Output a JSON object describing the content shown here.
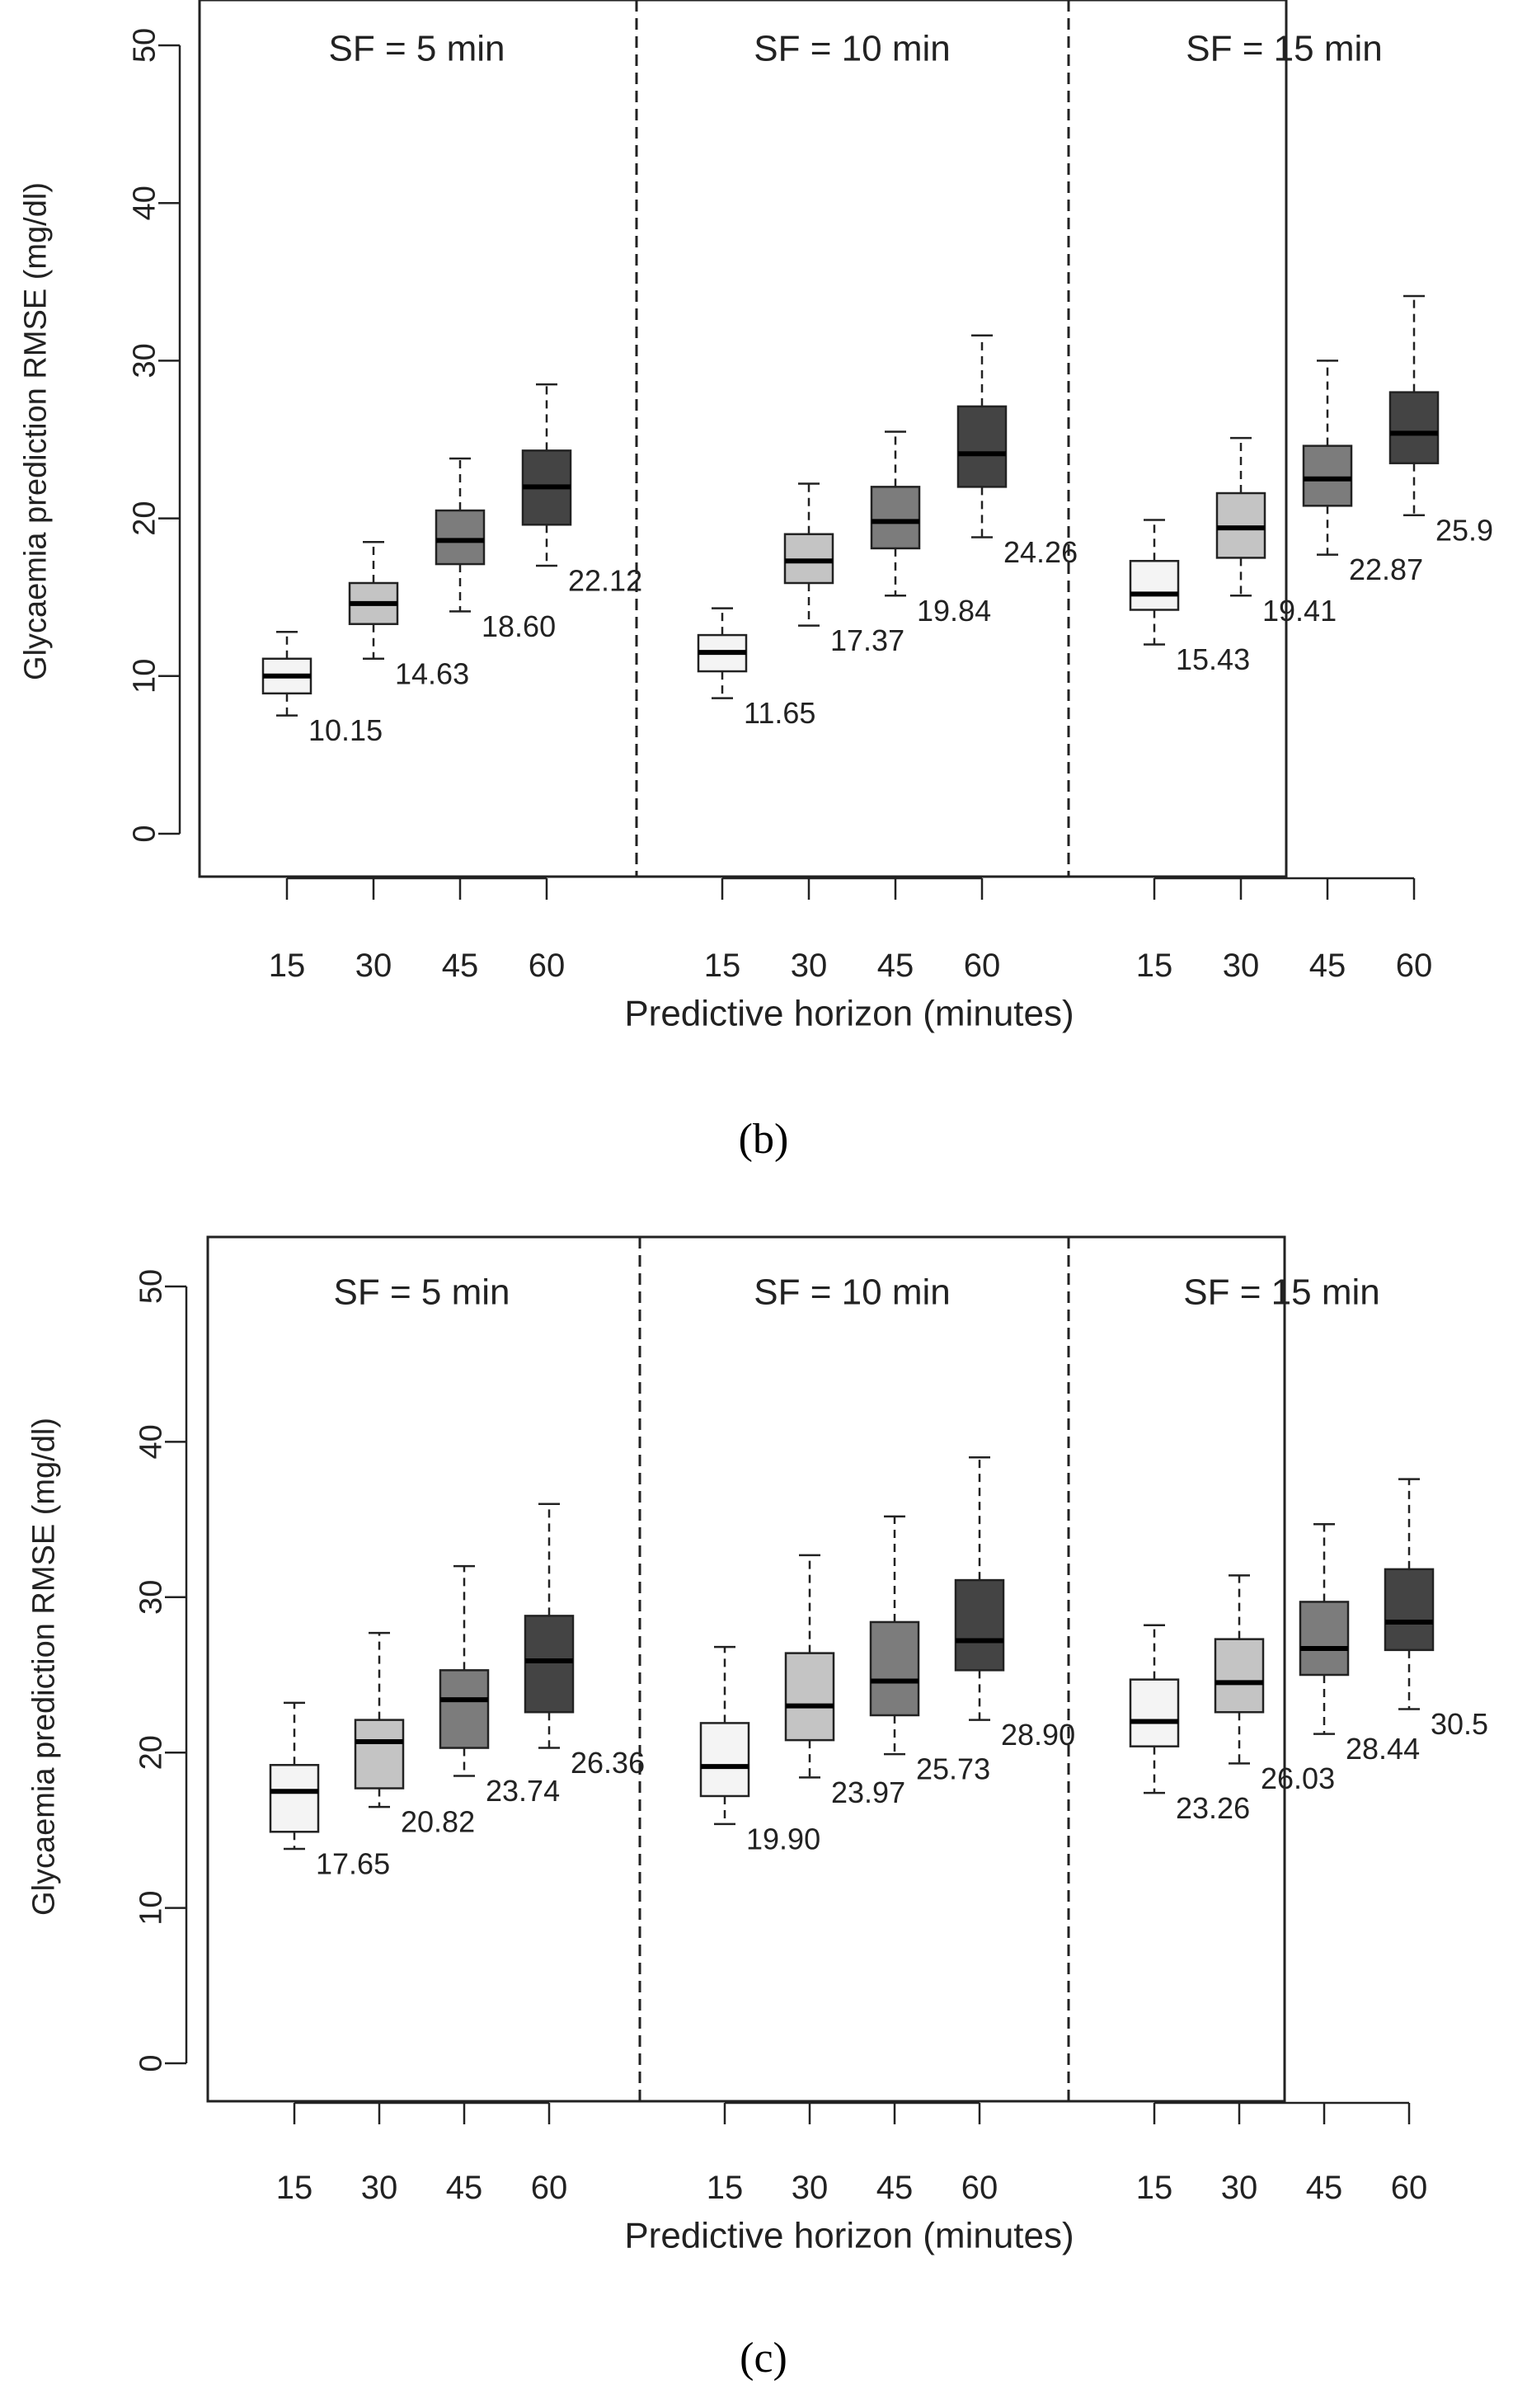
{
  "colors": {
    "h15": "#f4f4f4",
    "h30": "#c4c4c4",
    "h45": "#7c7c7c",
    "h60": "#444444",
    "ink": "#222222"
  },
  "chart_data": [
    {
      "id": "b",
      "type": "boxplot",
      "caption_text": "(b)",
      "xlabel": "Predictive horizon (minutes)",
      "ylabel": "Glycaemia prediction RMSE (mg/dl)",
      "ylim": [
        0,
        50
      ],
      "yticks": [
        "0",
        "10",
        "20",
        "30",
        "40",
        "50"
      ],
      "categories": [
        "15",
        "30",
        "45",
        "60"
      ],
      "groups": [
        {
          "title": "SF = 5 min",
          "boxes": [
            {
              "whisker_low": 7.5,
              "q1": 8.9,
              "median": 10.0,
              "q3": 11.1,
              "whisker_high": 12.8,
              "label": "10.15"
            },
            {
              "whisker_low": 11.1,
              "q1": 13.3,
              "median": 14.6,
              "q3": 15.9,
              "whisker_high": 18.5,
              "label": "14.63"
            },
            {
              "whisker_low": 14.1,
              "q1": 17.1,
              "median": 18.6,
              "q3": 20.5,
              "whisker_high": 23.8,
              "label": "18.60"
            },
            {
              "whisker_low": 17.0,
              "q1": 19.6,
              "median": 22.0,
              "q3": 24.3,
              "whisker_high": 28.5,
              "label": "22.12"
            }
          ]
        },
        {
          "title": "SF = 10 min",
          "boxes": [
            {
              "whisker_low": 8.6,
              "q1": 10.3,
              "median": 11.5,
              "q3": 12.6,
              "whisker_high": 14.3,
              "label": "11.65"
            },
            {
              "whisker_low": 13.2,
              "q1": 15.9,
              "median": 17.3,
              "q3": 19.0,
              "whisker_high": 22.2,
              "label": "17.37"
            },
            {
              "whisker_low": 15.1,
              "q1": 18.1,
              "median": 19.8,
              "q3": 22.0,
              "whisker_high": 25.5,
              "label": "19.84"
            },
            {
              "whisker_low": 18.8,
              "q1": 22.0,
              "median": 24.1,
              "q3": 27.1,
              "whisker_high": 31.6,
              "label": "24.26"
            }
          ]
        },
        {
          "title": "SF = 15 min",
          "boxes": [
            {
              "whisker_low": 12.0,
              "q1": 14.2,
              "median": 15.2,
              "q3": 17.3,
              "whisker_high": 19.9,
              "label": "15.43"
            },
            {
              "whisker_low": 15.1,
              "q1": 17.5,
              "median": 19.4,
              "q3": 21.6,
              "whisker_high": 25.1,
              "label": "19.41"
            },
            {
              "whisker_low": 17.7,
              "q1": 20.8,
              "median": 22.5,
              "q3": 24.6,
              "whisker_high": 30.0,
              "label": "22.87"
            },
            {
              "whisker_low": 20.2,
              "q1": 23.5,
              "median": 25.4,
              "q3": 28.0,
              "whisker_high": 34.1,
              "label": "25.9"
            }
          ]
        }
      ]
    },
    {
      "id": "c",
      "type": "boxplot",
      "caption_text": "(c)",
      "xlabel": "Predictive horizon (minutes)",
      "ylabel": "Glycaemia prediction RMSE (mg/dl)",
      "ylim": [
        0,
        50
      ],
      "yticks": [
        "0",
        "10",
        "20",
        "30",
        "40",
        "50"
      ],
      "categories": [
        "15",
        "30",
        "45",
        "60"
      ],
      "groups": [
        {
          "title": "SF = 5 min",
          "boxes": [
            {
              "whisker_low": 13.8,
              "q1": 14.9,
              "median": 17.5,
              "q3": 19.2,
              "whisker_high": 23.2,
              "label": "17.65"
            },
            {
              "whisker_low": 16.5,
              "q1": 17.7,
              "median": 20.7,
              "q3": 22.1,
              "whisker_high": 27.7,
              "label": "20.82"
            },
            {
              "whisker_low": 18.5,
              "q1": 20.3,
              "median": 23.4,
              "q3": 25.3,
              "whisker_high": 32.0,
              "label": "23.74"
            },
            {
              "whisker_low": 20.3,
              "q1": 22.6,
              "median": 25.9,
              "q3": 28.8,
              "whisker_high": 36.0,
              "label": "26.36"
            }
          ]
        },
        {
          "title": "SF = 10 min",
          "boxes": [
            {
              "whisker_low": 15.4,
              "q1": 17.2,
              "median": 19.1,
              "q3": 21.9,
              "whisker_high": 26.8,
              "label": "19.90"
            },
            {
              "whisker_low": 18.4,
              "q1": 20.8,
              "median": 23.0,
              "q3": 26.4,
              "whisker_high": 32.7,
              "label": "23.97"
            },
            {
              "whisker_low": 19.9,
              "q1": 22.4,
              "median": 24.6,
              "q3": 28.4,
              "whisker_high": 35.2,
              "label": "25.73"
            },
            {
              "whisker_low": 22.1,
              "q1": 25.3,
              "median": 27.2,
              "q3": 31.1,
              "whisker_high": 39.0,
              "label": "28.90"
            }
          ]
        },
        {
          "title": "SF = 15 min",
          "boxes": [
            {
              "whisker_low": 17.4,
              "q1": 20.4,
              "median": 22.0,
              "q3": 24.7,
              "whisker_high": 28.2,
              "label": "23.26"
            },
            {
              "whisker_low": 19.3,
              "q1": 22.6,
              "median": 24.5,
              "q3": 27.3,
              "whisker_high": 31.4,
              "label": "26.03"
            },
            {
              "whisker_low": 21.2,
              "q1": 25.0,
              "median": 26.7,
              "q3": 29.7,
              "whisker_high": 34.7,
              "label": "28.44"
            },
            {
              "whisker_low": 22.8,
              "q1": 26.6,
              "median": 28.4,
              "q3": 31.8,
              "whisker_high": 37.6,
              "label": "30.5"
            }
          ]
        }
      ]
    }
  ]
}
